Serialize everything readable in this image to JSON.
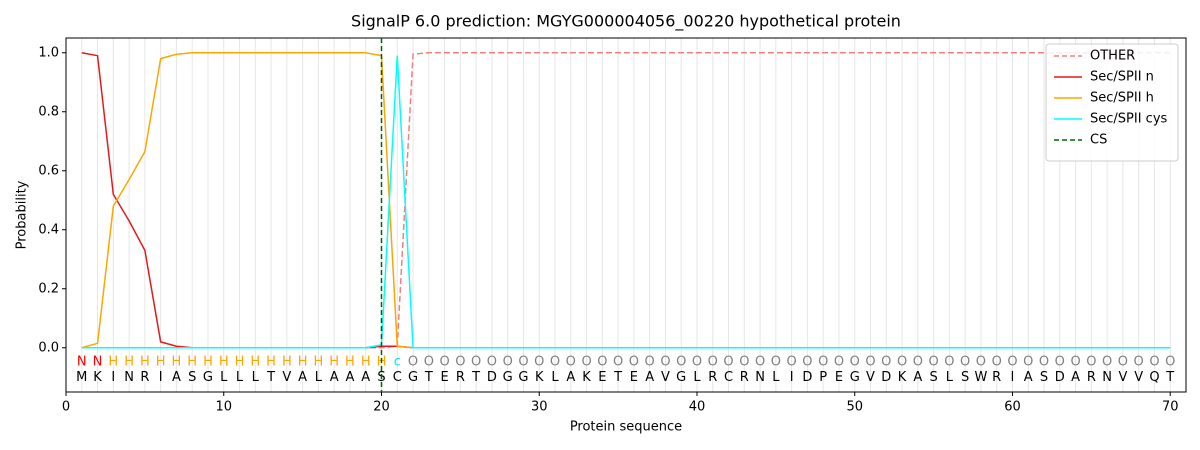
{
  "chart_data": {
    "type": "line",
    "title": "SignalP 6.0 prediction: MGYG000004056_00220 hypothetical protein",
    "xlabel": "Protein sequence",
    "ylabel": "Probability",
    "x": [
      1,
      2,
      3,
      4,
      5,
      6,
      7,
      8,
      9,
      10,
      11,
      12,
      13,
      14,
      15,
      16,
      17,
      18,
      19,
      20,
      21,
      22,
      23,
      24,
      25,
      26,
      27,
      28,
      29,
      30,
      31,
      32,
      33,
      34,
      35,
      36,
      37,
      38,
      39,
      40,
      41,
      42,
      43,
      44,
      45,
      46,
      47,
      48,
      49,
      50,
      51,
      52,
      53,
      54,
      55,
      56,
      57,
      58,
      59,
      60,
      61,
      62,
      63,
      64,
      65,
      66,
      67,
      68,
      69,
      70
    ],
    "sequence": [
      "M",
      "K",
      "I",
      "N",
      "R",
      "I",
      "A",
      "S",
      "G",
      "L",
      "L",
      "L",
      "T",
      "V",
      "A",
      "L",
      "A",
      "A",
      "A",
      "S",
      "C",
      "G",
      "T",
      "E",
      "R",
      "T",
      "D",
      "G",
      "G",
      "K",
      "L",
      "A",
      "K",
      "E",
      "T",
      "E",
      "A",
      "V",
      "G",
      "L",
      "R",
      "C",
      "R",
      "N",
      "L",
      "I",
      "D",
      "P",
      "E",
      "G",
      "V",
      "D",
      "K",
      "A",
      "S",
      "L",
      "S",
      "W",
      "R",
      "I",
      "A",
      "S",
      "D",
      "A",
      "R",
      "N",
      "V",
      "V",
      "Q",
      "T"
    ],
    "labels": [
      "N",
      "N",
      "H",
      "H",
      "H",
      "H",
      "H",
      "H",
      "H",
      "H",
      "H",
      "H",
      "H",
      "H",
      "H",
      "H",
      "H",
      "H",
      "H",
      "H",
      "c",
      "O",
      "O",
      "O",
      "O",
      "O",
      "O",
      "O",
      "O",
      "O",
      "O",
      "O",
      "O",
      "O",
      "O",
      "O",
      "O",
      "O",
      "O",
      "O",
      "O",
      "O",
      "O",
      "O",
      "O",
      "O",
      "O",
      "O",
      "O",
      "O",
      "O",
      "O",
      "O",
      "O",
      "O",
      "O",
      "O",
      "O",
      "O",
      "O",
      "O",
      "O",
      "O",
      "O",
      "O",
      "O",
      "O",
      "O",
      "O",
      "O"
    ],
    "label_colors": {
      "N": "#ff0000",
      "H": "#ffa500",
      "c": "#00e5ee",
      "O": "#808080"
    },
    "series": [
      {
        "name": "OTHER",
        "color": "#f08080",
        "dash": true,
        "values": [
          0,
          0,
          0,
          0,
          0,
          0,
          0,
          0,
          0,
          0,
          0,
          0,
          0,
          0,
          0,
          0,
          0,
          0,
          0,
          0,
          0.005,
          0.995,
          1,
          1,
          1,
          1,
          1,
          1,
          1,
          1,
          1,
          1,
          1,
          1,
          1,
          1,
          1,
          1,
          1,
          1,
          1,
          1,
          1,
          1,
          1,
          1,
          1,
          1,
          1,
          1,
          1,
          1,
          1,
          1,
          1,
          1,
          1,
          1,
          1,
          1,
          1,
          1,
          1,
          1,
          1,
          1,
          1,
          1,
          1,
          1
        ]
      },
      {
        "name": "Sec/SPII n",
        "color": "#e31a1c",
        "dash": false,
        "values": [
          1.0,
          0.99,
          0.52,
          0.43,
          0.33,
          0.02,
          0.005,
          0,
          0,
          0,
          0,
          0,
          0,
          0,
          0,
          0,
          0,
          0,
          0,
          0.005,
          0.005,
          0,
          0,
          0,
          0,
          0,
          0,
          0,
          0,
          0,
          0,
          0,
          0,
          0,
          0,
          0,
          0,
          0,
          0,
          0,
          0,
          0,
          0,
          0,
          0,
          0,
          0,
          0,
          0,
          0,
          0,
          0,
          0,
          0,
          0,
          0,
          0,
          0,
          0,
          0,
          0,
          0,
          0,
          0,
          0,
          0,
          0,
          0,
          0,
          0
        ]
      },
      {
        "name": "Sec/SPII h",
        "color": "#ffa500",
        "dash": false,
        "values": [
          0,
          0.015,
          0.48,
          0.57,
          0.665,
          0.98,
          0.995,
          1,
          1,
          1,
          1,
          1,
          1,
          1,
          1,
          1,
          1,
          1,
          1,
          0.99,
          0.005,
          0,
          0,
          0,
          0,
          0,
          0,
          0,
          0,
          0,
          0,
          0,
          0,
          0,
          0,
          0,
          0,
          0,
          0,
          0,
          0,
          0,
          0,
          0,
          0,
          0,
          0,
          0,
          0,
          0,
          0,
          0,
          0,
          0,
          0,
          0,
          0,
          0,
          0,
          0,
          0,
          0,
          0,
          0,
          0,
          0,
          0,
          0,
          0,
          0
        ]
      },
      {
        "name": "Sec/SPII cys",
        "color": "#00ffff",
        "dash": false,
        "values": [
          0,
          0,
          0,
          0,
          0,
          0,
          0,
          0,
          0,
          0,
          0,
          0,
          0,
          0,
          0,
          0,
          0,
          0,
          0,
          0.01,
          0.99,
          0,
          0,
          0,
          0,
          0,
          0,
          0,
          0,
          0,
          0,
          0,
          0,
          0,
          0,
          0,
          0,
          0,
          0,
          0,
          0,
          0,
          0,
          0,
          0,
          0,
          0,
          0,
          0,
          0,
          0,
          0,
          0,
          0,
          0,
          0,
          0,
          0,
          0,
          0,
          0,
          0,
          0,
          0,
          0,
          0,
          0,
          0,
          0,
          0
        ]
      }
    ],
    "cs": {
      "name": "CS",
      "x": 20,
      "color": "#006400"
    },
    "xlim": [
      0,
      71
    ],
    "ylim": [
      -0.15,
      1.05
    ],
    "xticks": [
      0,
      10,
      20,
      30,
      40,
      50,
      60,
      70
    ],
    "yticks": [
      {
        "value": 0,
        "label": "0.0"
      },
      {
        "value": 0.2,
        "label": "0.2"
      },
      {
        "value": 0.4,
        "label": "0.4"
      },
      {
        "value": 0.6,
        "label": "0.6"
      },
      {
        "value": 0.8,
        "label": "0.8"
      },
      {
        "value": 1,
        "label": "1.0"
      }
    ],
    "legend": "upper right"
  }
}
